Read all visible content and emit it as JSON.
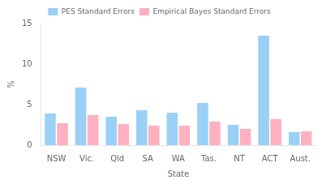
{
  "chart_data": {
    "type": "bar",
    "categories": [
      "NSW",
      "Vic.",
      "Qld",
      "SA",
      "WA",
      "Tas.",
      "NT",
      "ACT",
      "Aust."
    ],
    "series": [
      {
        "name": "PES Standard Errors",
        "values": [
          3.9,
          7.1,
          3.5,
          4.3,
          4.0,
          5.2,
          2.5,
          13.5,
          1.6
        ]
      },
      {
        "name": "Empirical Bayes Standard Errors",
        "values": [
          2.7,
          3.7,
          2.6,
          2.4,
          2.4,
          2.9,
          2.0,
          3.2,
          1.7
        ]
      }
    ],
    "xlabel": "State",
    "ylabel": "%",
    "ylim": [
      0,
      15
    ],
    "yticks": [
      0,
      5,
      10,
      15
    ],
    "grid": false,
    "legend": "top"
  }
}
